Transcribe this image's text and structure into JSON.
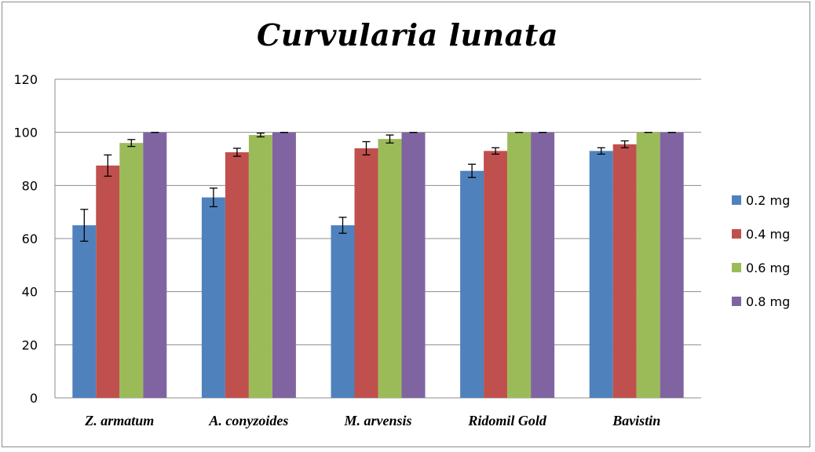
{
  "chart_data": {
    "type": "bar",
    "title": "Curvularia lunata",
    "xlabel": "",
    "ylabel": "",
    "ylim": [
      0,
      120
    ],
    "yticks": [
      0,
      20,
      40,
      60,
      80,
      100,
      120
    ],
    "grid": true,
    "legend_position": "right",
    "categories": [
      "Z. armatum",
      "A. conyzoides",
      "M. arvensis",
      "Ridomil Gold",
      "Bavistin"
    ],
    "series": [
      {
        "name": "0.2 mg",
        "color": "#4f81bd",
        "values": [
          65,
          75.5,
          65,
          85.5,
          93
        ],
        "errors": [
          6,
          3.5,
          3,
          2.5,
          1.2
        ]
      },
      {
        "name": "0.4 mg",
        "color": "#c0504d",
        "values": [
          87.5,
          92.5,
          94,
          93,
          95.5
        ],
        "errors": [
          4,
          1.5,
          2.5,
          1.2,
          1.3
        ]
      },
      {
        "name": "0.6 mg",
        "color": "#9bbb59",
        "values": [
          96,
          99,
          97.5,
          100,
          100
        ],
        "errors": [
          1.3,
          0.7,
          1.5,
          0,
          0
        ]
      },
      {
        "name": "0.8 mg",
        "color": "#8064a2",
        "values": [
          100,
          100,
          100,
          100,
          100
        ],
        "errors": [
          0,
          0,
          0,
          0,
          0
        ]
      }
    ]
  }
}
